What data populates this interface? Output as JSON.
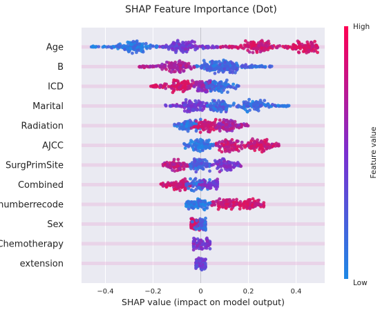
{
  "chart_data": {
    "type": "scatter",
    "title": "SHAP Feature Importance (Dot)",
    "xlabel": "SHAP value (impact on model output)",
    "ylabel": "",
    "xlim": [
      -0.5,
      0.52
    ],
    "x_ticks": [
      -0.4,
      -0.2,
      0,
      0.2,
      0.4
    ],
    "x_tick_labels": [
      "−0.4",
      "−0.2",
      "0",
      "0.2",
      "0.4"
    ],
    "grid": true,
    "colorbar": {
      "label": "Feature value",
      "high": "High",
      "low": "Low"
    },
    "colors": {
      "low": "#1e88e5",
      "mid": "#7b2fd0",
      "high": "#e0125c",
      "background": "#eaeaf2"
    },
    "features": [
      {
        "name": "Age",
        "range": [
          -0.46,
          0.49
        ],
        "lobes": [
          {
            "x": -0.28,
            "hi": 0.08
          },
          {
            "x": -0.08,
            "hi": 0.45
          },
          {
            "x": 0.24,
            "hi": 0.9
          },
          {
            "x": 0.44,
            "hi": 0.95
          }
        ]
      },
      {
        "name": "B",
        "range": [
          -0.27,
          0.3
        ],
        "lobes": [
          {
            "x": -0.1,
            "hi": 0.75
          },
          {
            "x": 0.05,
            "hi": 0.15
          },
          {
            "x": 0.12,
            "hi": 0.2
          }
        ]
      },
      {
        "name": "ICD",
        "range": [
          -0.21,
          0.16
        ],
        "lobes": [
          {
            "x": -0.08,
            "hi": 0.92
          },
          {
            "x": 0.02,
            "hi": 0.6
          },
          {
            "x": 0.07,
            "hi": 0.15
          }
        ]
      },
      {
        "name": "Marital",
        "range": [
          -0.15,
          0.37
        ],
        "lobes": [
          {
            "x": -0.03,
            "hi": 0.45
          },
          {
            "x": 0.08,
            "hi": 0.2
          },
          {
            "x": 0.22,
            "hi": 0.15
          }
        ]
      },
      {
        "name": "Radiation",
        "range": [
          -0.11,
          0.2
        ],
        "lobes": [
          {
            "x": -0.05,
            "hi": 0.15
          },
          {
            "x": 0.02,
            "hi": 0.92
          },
          {
            "x": 0.11,
            "hi": 0.7
          }
        ]
      },
      {
        "name": "AJCC",
        "range": [
          -0.07,
          0.33
        ],
        "lobes": [
          {
            "x": 0.0,
            "hi": 0.1
          },
          {
            "x": 0.12,
            "hi": 0.85
          },
          {
            "x": 0.25,
            "hi": 0.9
          }
        ]
      },
      {
        "name": "SurgPrimSite",
        "range": [
          -0.17,
          0.17
        ],
        "lobes": [
          {
            "x": -0.1,
            "hi": 0.82
          },
          {
            "x": 0.0,
            "hi": 0.2
          },
          {
            "x": 0.1,
            "hi": 0.5
          }
        ]
      },
      {
        "name": "Combined",
        "range": [
          -0.17,
          0.07
        ],
        "lobes": [
          {
            "x": -0.08,
            "hi": 0.9
          },
          {
            "x": -0.01,
            "hi": 0.15
          },
          {
            "x": 0.04,
            "hi": 0.5
          }
        ]
      },
      {
        "name": "numberrecode",
        "range": [
          -0.07,
          0.27
        ],
        "lobes": [
          {
            "x": -0.01,
            "hi": 0.1
          },
          {
            "x": 0.1,
            "hi": 0.88
          },
          {
            "x": 0.2,
            "hi": 0.92
          }
        ]
      },
      {
        "name": "Sex",
        "range": [
          -0.04,
          0.02
        ],
        "lobes": [
          {
            "x": -0.02,
            "hi": 0.95
          },
          {
            "x": 0.005,
            "hi": 0.2
          }
        ]
      },
      {
        "name": "Chemotherapy",
        "range": [
          -0.03,
          0.04
        ],
        "lobes": [
          {
            "x": 0.0,
            "hi": 0.5
          }
        ]
      },
      {
        "name": "extension",
        "range": [
          -0.02,
          0.02
        ],
        "lobes": [
          {
            "x": 0.0,
            "hi": 0.4
          }
        ]
      }
    ]
  }
}
